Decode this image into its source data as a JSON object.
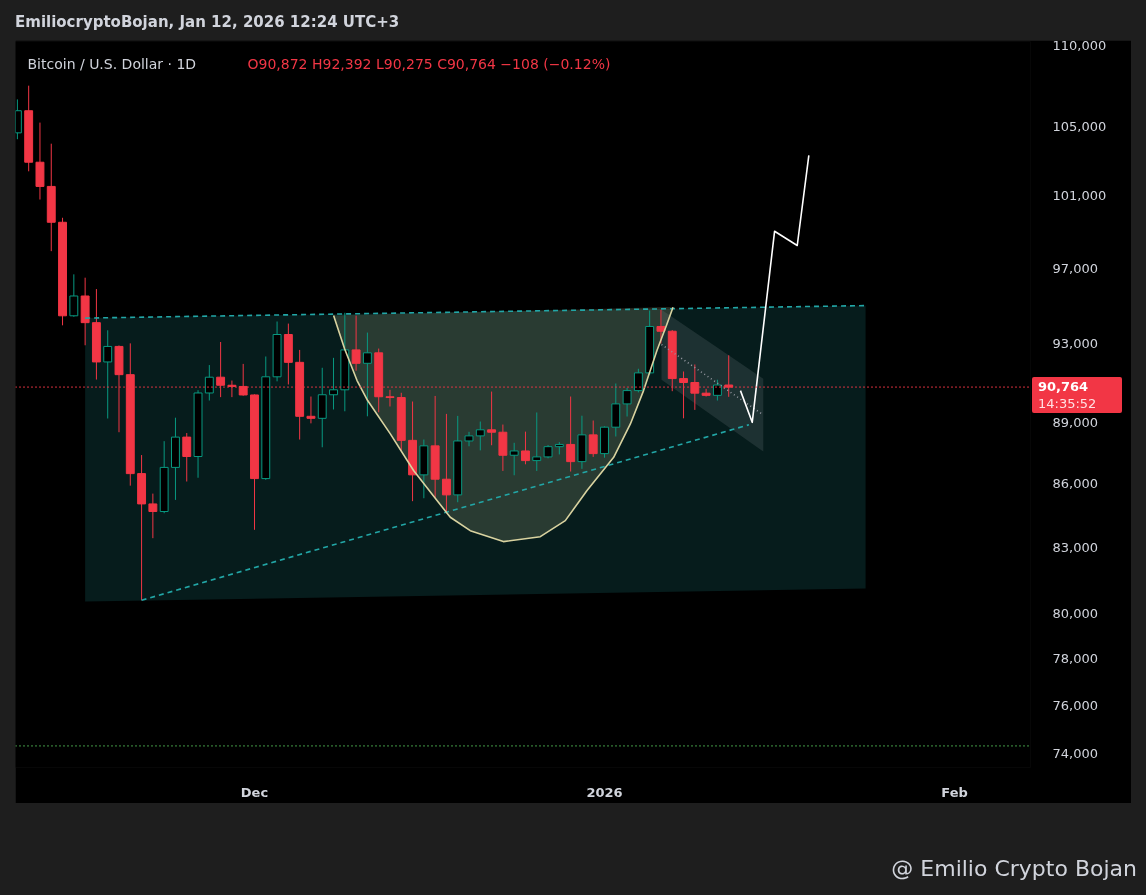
{
  "chart_data": {
    "type": "candlestick",
    "title": "EmiliocryptoBojan, Jan 12, 2026 12:24 UTC+3",
    "subtitle": "Bitcoin / U.S. Dollar · 1D",
    "annotations": [
      "O90,872 H92,392 L90,275 C90,764 −108 (−0.12%)",
      "14:35:52",
      "@ Emilio Crypto Bojan"
    ],
    "x": [
      "2025-11-10",
      "2025-11-11",
      "2025-11-12",
      "2025-11-13",
      "2025-11-14",
      "2025-11-15",
      "2025-11-16",
      "2025-11-17",
      "2025-11-18",
      "2025-11-19",
      "2025-11-20",
      "2025-11-21",
      "2025-11-22",
      "2025-11-23",
      "2025-11-24",
      "2025-11-25",
      "2025-11-26",
      "2025-11-27",
      "2025-11-28",
      "2025-11-29",
      "2025-11-30",
      "2025-12-01",
      "2025-12-02",
      "2025-12-03",
      "2025-12-04",
      "2025-12-05",
      "2025-12-06",
      "2025-12-07",
      "2025-12-08",
      "2025-12-09",
      "2025-12-10",
      "2025-12-11",
      "2025-12-12",
      "2025-12-13",
      "2025-12-14",
      "2025-12-15",
      "2025-12-16",
      "2025-12-17",
      "2025-12-18",
      "2025-12-19",
      "2025-12-20",
      "2025-12-21",
      "2025-12-22",
      "2025-12-23",
      "2025-12-24",
      "2025-12-25",
      "2025-12-26",
      "2025-12-27",
      "2025-12-28",
      "2025-12-29",
      "2025-12-30",
      "2025-12-31",
      "2026-01-01",
      "2026-01-02",
      "2026-01-03",
      "2026-01-04",
      "2026-01-05",
      "2026-01-06",
      "2026-01-07",
      "2026-01-08",
      "2026-01-09",
      "2026-01-10",
      "2026-01-11",
      "2026-01-12"
    ],
    "ohlc": [
      [
        104600,
        106570,
        104230,
        105900
      ],
      [
        105900,
        107390,
        102380,
        102900
      ],
      [
        102900,
        105200,
        100780,
        101520
      ],
      [
        101520,
        103970,
        97920,
        99510
      ],
      [
        99510,
        99760,
        93950,
        94450
      ],
      [
        94450,
        96660,
        94400,
        95500
      ],
      [
        95500,
        96480,
        92910,
        94090
      ],
      [
        94090,
        95870,
        91150,
        92050
      ],
      [
        92050,
        93690,
        89190,
        92850
      ],
      [
        92850,
        92900,
        88510,
        91400
      ],
      [
        91400,
        93010,
        85910,
        86490
      ],
      [
        86490,
        87390,
        80590,
        85040
      ],
      [
        85040,
        85530,
        83430,
        84680
      ],
      [
        84680,
        88070,
        84600,
        86790
      ],
      [
        86790,
        89230,
        85230,
        88270
      ],
      [
        88270,
        88470,
        86110,
        87320
      ],
      [
        87320,
        90610,
        86290,
        90470
      ],
      [
        90470,
        91890,
        90090,
        91270
      ],
      [
        91270,
        93080,
        90260,
        90860
      ],
      [
        90860,
        91100,
        90260,
        90800
      ],
      [
        90800,
        91950,
        90330,
        90370
      ],
      [
        90370,
        90400,
        83820,
        86250
      ],
      [
        86250,
        92330,
        86190,
        91290
      ],
      [
        91290,
        94150,
        91060,
        93470
      ],
      [
        93470,
        94040,
        90900,
        92030
      ],
      [
        92030,
        92670,
        88150,
        89300
      ],
      [
        89300,
        90290,
        88950,
        89200
      ],
      [
        89200,
        91750,
        87770,
        90380
      ],
      [
        90380,
        92260,
        89640,
        90630
      ],
      [
        90630,
        94610,
        89550,
        92670
      ],
      [
        92670,
        94460,
        91600,
        91980
      ],
      [
        91980,
        93570,
        89300,
        92520
      ],
      [
        92520,
        92740,
        89500,
        90280
      ],
      [
        90280,
        90630,
        89790,
        90240
      ],
      [
        90240,
        90480,
        87610,
        88110
      ],
      [
        88110,
        90040,
        85170,
        86430
      ],
      [
        86430,
        88150,
        85310,
        87840
      ],
      [
        87840,
        90320,
        85330,
        86220
      ],
      [
        86220,
        89420,
        84600,
        85470
      ],
      [
        85470,
        89320,
        85120,
        88080
      ],
      [
        88080,
        88530,
        87820,
        88330
      ],
      [
        88330,
        89040,
        87620,
        88630
      ],
      [
        88630,
        90540,
        87870,
        88510
      ],
      [
        88510,
        88890,
        86620,
        87380
      ],
      [
        87380,
        87990,
        86410,
        87590
      ],
      [
        87590,
        88540,
        86940,
        87120
      ],
      [
        87120,
        89490,
        86620,
        87300
      ],
      [
        87300,
        87880,
        87230,
        87800
      ],
      [
        87800,
        88020,
        87420,
        87910
      ],
      [
        87910,
        90290,
        86590,
        87070
      ],
      [
        87070,
        89330,
        86720,
        88380
      ],
      [
        88380,
        89090,
        87300,
        87460
      ],
      [
        87460,
        88800,
        87260,
        88760
      ],
      [
        88760,
        90950,
        88300,
        89920
      ],
      [
        89920,
        90720,
        89290,
        90590
      ],
      [
        90590,
        91700,
        90500,
        91490
      ],
      [
        91490,
        94730,
        91400,
        93890
      ],
      [
        93890,
        94770,
        93000,
        93640
      ],
      [
        93640,
        93700,
        90560,
        91200
      ],
      [
        91200,
        91560,
        89200,
        91000
      ],
      [
        91000,
        91920,
        89620,
        90460
      ],
      [
        90460,
        90680,
        90290,
        90350
      ],
      [
        90350,
        91140,
        90090,
        90872
      ],
      [
        90872,
        92392,
        90275,
        90764
      ]
    ],
    "colors": [
      "#089981",
      "#f23645",
      "#f23645",
      "#f23645",
      "#f23645",
      "#089981",
      "#f23645",
      "#f23645",
      "#089981",
      "#f23645",
      "#f23645",
      "#f23645",
      "#f23645",
      "#089981",
      "#089981",
      "#f23645",
      "#089981",
      "#089981",
      "#f23645",
      "#f23645",
      "#f23645",
      "#f23645",
      "#089981",
      "#089981",
      "#f23645",
      "#f23645",
      "#f23645",
      "#089981",
      "#089981",
      "#089981",
      "#f23645",
      "#089981",
      "#f23645",
      "#f23645",
      "#f23645",
      "#f23645",
      "#089981",
      "#f23645",
      "#f23645",
      "#089981",
      "#089981",
      "#089981",
      "#f23645",
      "#f23645",
      "#089981",
      "#f23645",
      "#089981",
      "#089981",
      "#089981",
      "#f23645",
      "#089981",
      "#f23645",
      "#089981",
      "#089981",
      "#089981",
      "#089981",
      "#089981",
      "#f23645",
      "#f23645",
      "#f23645",
      "#f23645",
      "#f23645",
      "#089981",
      "#f23645"
    ],
    "series": [
      {
        "type": "line",
        "line_style": "dashed",
        "color": "#22a6a6",
        "x": [
          "2025-11-16",
          "2026-01-24T03:00"
        ],
        "values": [
          94330,
          94990
        ],
        "upper": [
          94330,
          94990
        ],
        "lower": [
          80530,
          81120
        ]
      },
      {
        "type": "line",
        "line_style": "dashed",
        "color": "#22a6a6",
        "x": [
          "2025-11-21",
          "2026-01-13T19:00"
        ],
        "values": [
          80590,
          88880
        ]
      },
      {
        "type": "line",
        "line_style": "solid",
        "color": "#d9d3a0",
        "x": [
          "2025-12-08T00:10",
          "2025-12-08T23:30",
          "2025-12-10T02:00",
          "2025-12-11T00:30",
          "2025-12-13T00:45",
          "2025-12-15T02:10",
          "2025-12-17T04:00",
          "2025-12-18T08:10",
          "2025-12-20T02:40",
          "2025-12-23T01:00",
          "2025-12-26T07:30",
          "2025-12-28T12:40",
          "2025-12-30T10:50",
          "2026-01-01T19:30",
          "2026-01-03T07:00",
          "2026-01-04T11:00",
          "2026-01-05T15:30",
          "2026-01-06T13:00",
          "2026-01-07T01:40"
        ],
        "values": [
          94460,
          92730,
          91100,
          90090,
          88430,
          86640,
          85200,
          84410,
          83780,
          83270,
          83500,
          84250,
          85680,
          87280,
          88920,
          90590,
          92640,
          94030,
          94900
        ],
        "lower": [
          94460,
          92730,
          91100,
          90090,
          88430,
          86640,
          85200,
          84410,
          83780,
          83270,
          83500,
          84250,
          85680,
          87280,
          88920,
          90590,
          92640,
          94030,
          94900
        ],
        "upper": [
          94460,
          94480,
          94500,
          94510,
          94540,
          94570,
          94600,
          94620,
          94650,
          94690,
          94740,
          94770,
          94800,
          94840,
          94860,
          94880,
          94900,
          94910,
          94900
        ]
      },
      {
        "type": "line",
        "line_style": "dotted",
        "color": "#9598a1",
        "x": [
          "2026-01-06T01:10",
          "2026-01-15T01:30"
        ],
        "values": [
          92950,
          89370
        ],
        "lower": [
          91140,
          87560
        ],
        "upper": [
          94770,
          91190
        ]
      },
      {
        "type": "line",
        "line_style": "solid",
        "color": "#ffffff",
        "x": [
          "2026-01-13T01:00",
          "2026-01-14T02:00",
          "2026-01-16T01:30",
          "2026-01-18T01:40",
          "2026-01-19T02:20"
        ],
        "values": [
          90590,
          89000,
          99010,
          98230,
          103290
        ]
      }
    ],
    "xlim": [
      "2025-11-09T20:00",
      "2026-02-07T17:30"
    ],
    "xticks": [
      {
        "value": "2025-12-01",
        "label": "Dec"
      },
      {
        "value": "2026-01-01",
        "label": "2026"
      },
      {
        "value": "2026-02-01",
        "label": "Feb"
      }
    ],
    "ylim": [
      73410,
      110070
    ],
    "yticks": [
      {
        "value": 74000,
        "label": "74,000"
      },
      {
        "value": 76000,
        "label": "76,000"
      },
      {
        "value": 78000,
        "label": "78,000"
      },
      {
        "value": 80000,
        "label": "80,000"
      },
      {
        "value": 83000,
        "label": "83,000"
      },
      {
        "value": 86000,
        "label": "86,000"
      },
      {
        "value": 89000,
        "label": "89,000"
      },
      {
        "value": 93000,
        "label": "93,000"
      },
      {
        "value": 97000,
        "label": "97,000"
      },
      {
        "value": 101000,
        "label": "101,000"
      },
      {
        "value": 105000,
        "label": "105,000"
      },
      {
        "value": 110000,
        "label": "110,000"
      }
    ],
    "log": true,
    "ref_lines": [
      {
        "axis": "y",
        "value": 90764,
        "label": "90,764",
        "color": "#f23645",
        "line_style": "dotted"
      },
      {
        "axis": "y",
        "value": 74300,
        "color": "#4caf50",
        "line_style": "dotted"
      }
    ]
  }
}
